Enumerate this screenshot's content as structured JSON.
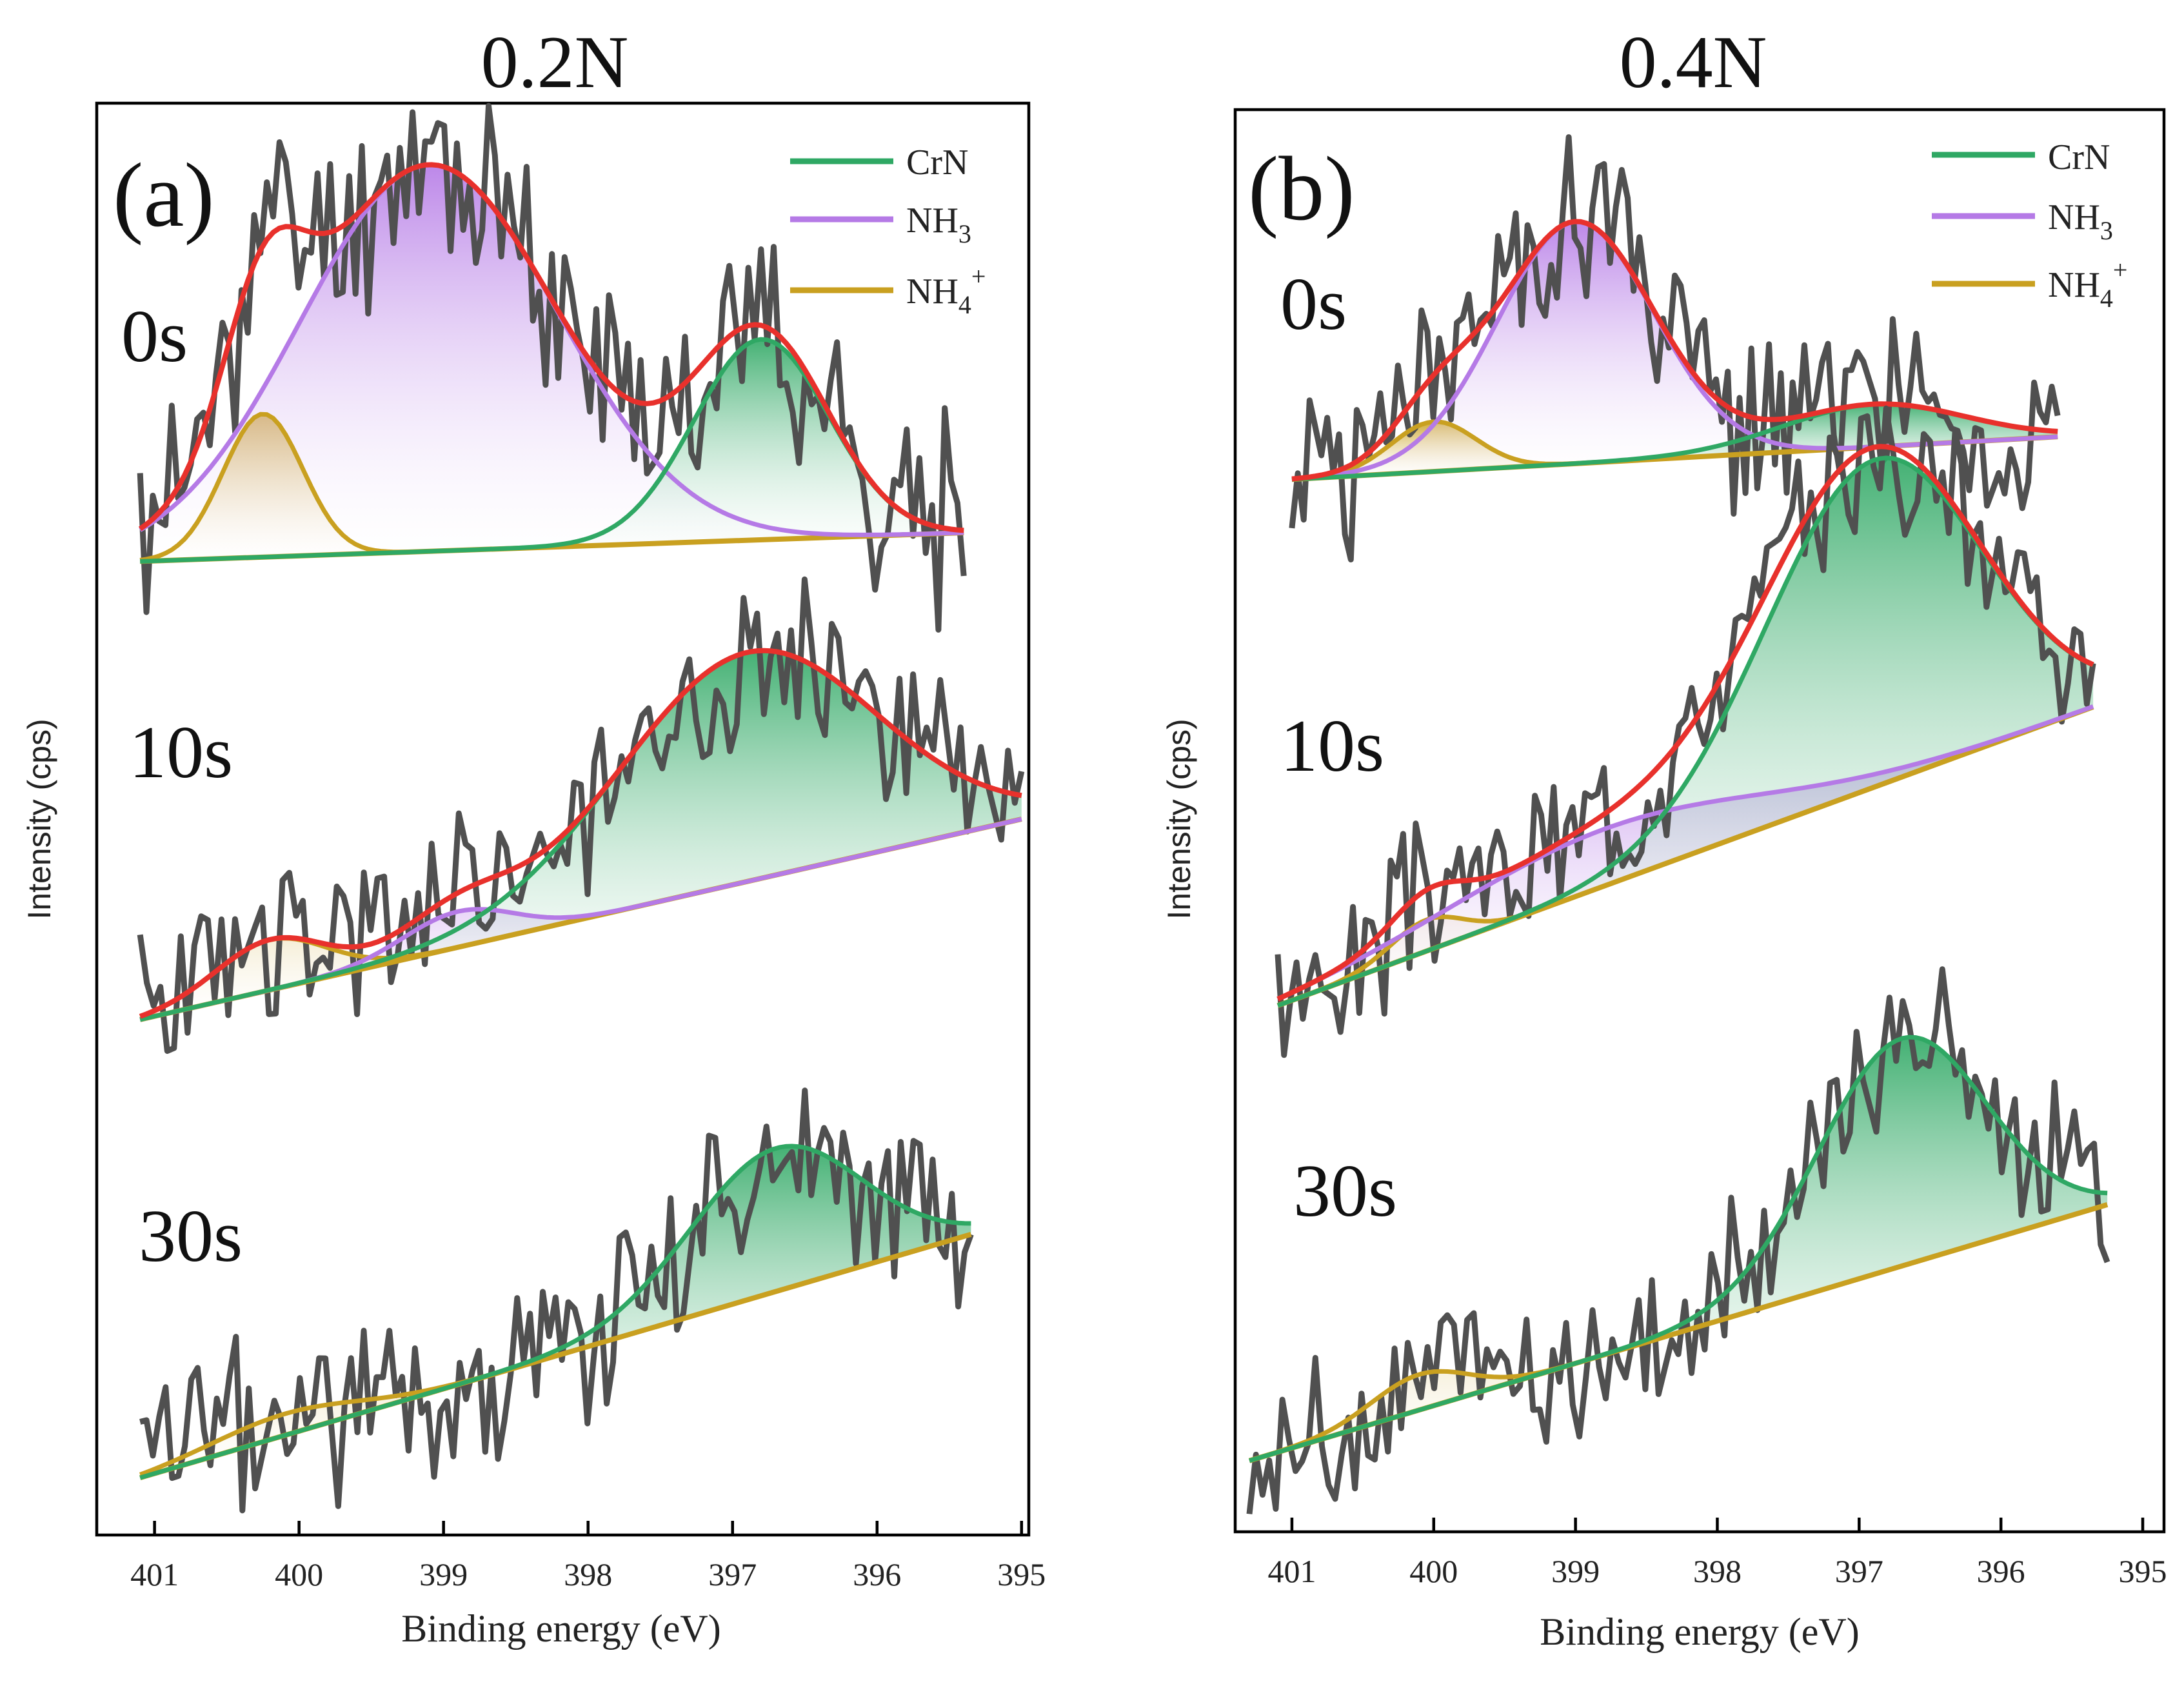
{
  "figure": {
    "colors": {
      "CrN": "#2fa864",
      "NH3": "#b57ae6",
      "NH4+": "#c9a020",
      "envelope": "#e8312c",
      "raw": "#505050",
      "baseline": "#2a6fc0"
    }
  },
  "chart_data": [
    {
      "type": "line",
      "panel": "(a)",
      "title": "0.2N",
      "xlabel": "Binding energy (eV)",
      "ylabel": "Intensity (cps)",
      "xlim": [
        401.4,
        394.95
      ],
      "xticks": [
        401,
        400,
        399,
        398,
        397,
        396,
        395
      ],
      "ylim": [
        0,
        1
      ],
      "legend": {
        "position": "top-right",
        "entries": [
          "CrN",
          "NH3",
          "NH4+"
        ]
      },
      "spectra": [
        {
          "label": "0s",
          "offset": 0.68,
          "x_start": 401.1,
          "x_end": 395.4,
          "baseline": [
            0.0,
            0.02
          ],
          "noise": 0.11,
          "seed": 11,
          "components": [
            {
              "name": "NH4+",
              "center": 400.25,
              "fwhm": 0.65,
              "height": 0.1
            },
            {
              "name": "NH3",
              "center": 399.1,
              "fwhm": 2.1,
              "height": 0.27
            },
            {
              "name": "CrN",
              "center": 396.8,
              "fwhm": 1.1,
              "height": 0.14
            }
          ]
        },
        {
          "label": "10s",
          "offset": 0.36,
          "x_start": 401.1,
          "x_end": 395.0,
          "baseline": [
            0.0,
            0.14
          ],
          "noise": 0.09,
          "seed": 23,
          "components": [
            {
              "name": "NH4+",
              "center": 400.2,
              "fwhm": 0.9,
              "height": 0.035
            },
            {
              "name": "NH3",
              "center": 398.9,
              "fwhm": 0.9,
              "height": 0.025
            },
            {
              "name": "CrN",
              "center": 396.9,
              "fwhm": 2.1,
              "height": 0.16
            }
          ]
        },
        {
          "label": "30s",
          "offset": 0.04,
          "x_start": 401.1,
          "x_end": 395.35,
          "baseline": [
            0.0,
            0.17
          ],
          "noise": 0.1,
          "seed": 37,
          "components": [
            {
              "name": "NH4+",
              "center": 400.1,
              "fwhm": 1.2,
              "height": 0.015
            },
            {
              "name": "NH3",
              "center": 399.5,
              "fwhm": 1.0,
              "height": 0.0
            },
            {
              "name": "CrN",
              "center": 396.7,
              "fwhm": 1.4,
              "height": 0.1
            }
          ]
        }
      ],
      "annotations": {
        "panel_label": "(a)",
        "time_labels": [
          "0s",
          "10s",
          "30s"
        ]
      }
    },
    {
      "type": "line",
      "panel": "(b)",
      "title": "0.4N",
      "xlabel": "Binding energy (eV)",
      "ylabel": "Intensity (cps)",
      "xlim": [
        401.4,
        394.85
      ],
      "xticks": [
        401,
        400,
        399,
        398,
        397,
        396,
        395
      ],
      "ylim": [
        0,
        1
      ],
      "legend": {
        "position": "top-right",
        "entries": [
          "CrN",
          "NH3",
          "NH4+"
        ]
      },
      "spectra": [
        {
          "label": "0s",
          "offset": 0.74,
          "x_start": 401.0,
          "x_end": 395.6,
          "baseline": [
            0.0,
            0.03
          ],
          "noise": 0.1,
          "seed": 51,
          "components": [
            {
              "name": "NH4+",
              "center": 400.0,
              "fwhm": 0.7,
              "height": 0.035
            },
            {
              "name": "NH3",
              "center": 399.0,
              "fwhm": 1.3,
              "height": 0.17
            },
            {
              "name": "CrN",
              "center": 396.9,
              "fwhm": 1.5,
              "height": 0.03
            }
          ]
        },
        {
          "label": "10s",
          "offset": 0.37,
          "x_start": 401.1,
          "x_end": 395.35,
          "baseline": [
            0.0,
            0.21
          ],
          "noise": 0.08,
          "seed": 67,
          "components": [
            {
              "name": "NH4+",
              "center": 400.05,
              "fwhm": 0.6,
              "height": 0.022
            },
            {
              "name": "NH3",
              "center": 398.8,
              "fwhm": 2.6,
              "height": 0.04
            },
            {
              "name": "CrN",
              "center": 396.9,
              "fwhm": 1.8,
              "height": 0.23
            }
          ]
        },
        {
          "label": "30s",
          "offset": 0.05,
          "x_start": 401.3,
          "x_end": 395.25,
          "baseline": [
            0.0,
            0.18
          ],
          "noise": 0.09,
          "seed": 83,
          "components": [
            {
              "name": "NH4+",
              "center": 400.1,
              "fwhm": 0.8,
              "height": 0.025
            },
            {
              "name": "NH3",
              "center": 399.5,
              "fwhm": 1.0,
              "height": 0.0
            },
            {
              "name": "CrN",
              "center": 396.7,
              "fwhm": 1.4,
              "height": 0.16
            }
          ]
        }
      ],
      "annotations": {
        "panel_label": "(b)",
        "time_labels": [
          "0s",
          "10s",
          "30s"
        ]
      }
    }
  ]
}
